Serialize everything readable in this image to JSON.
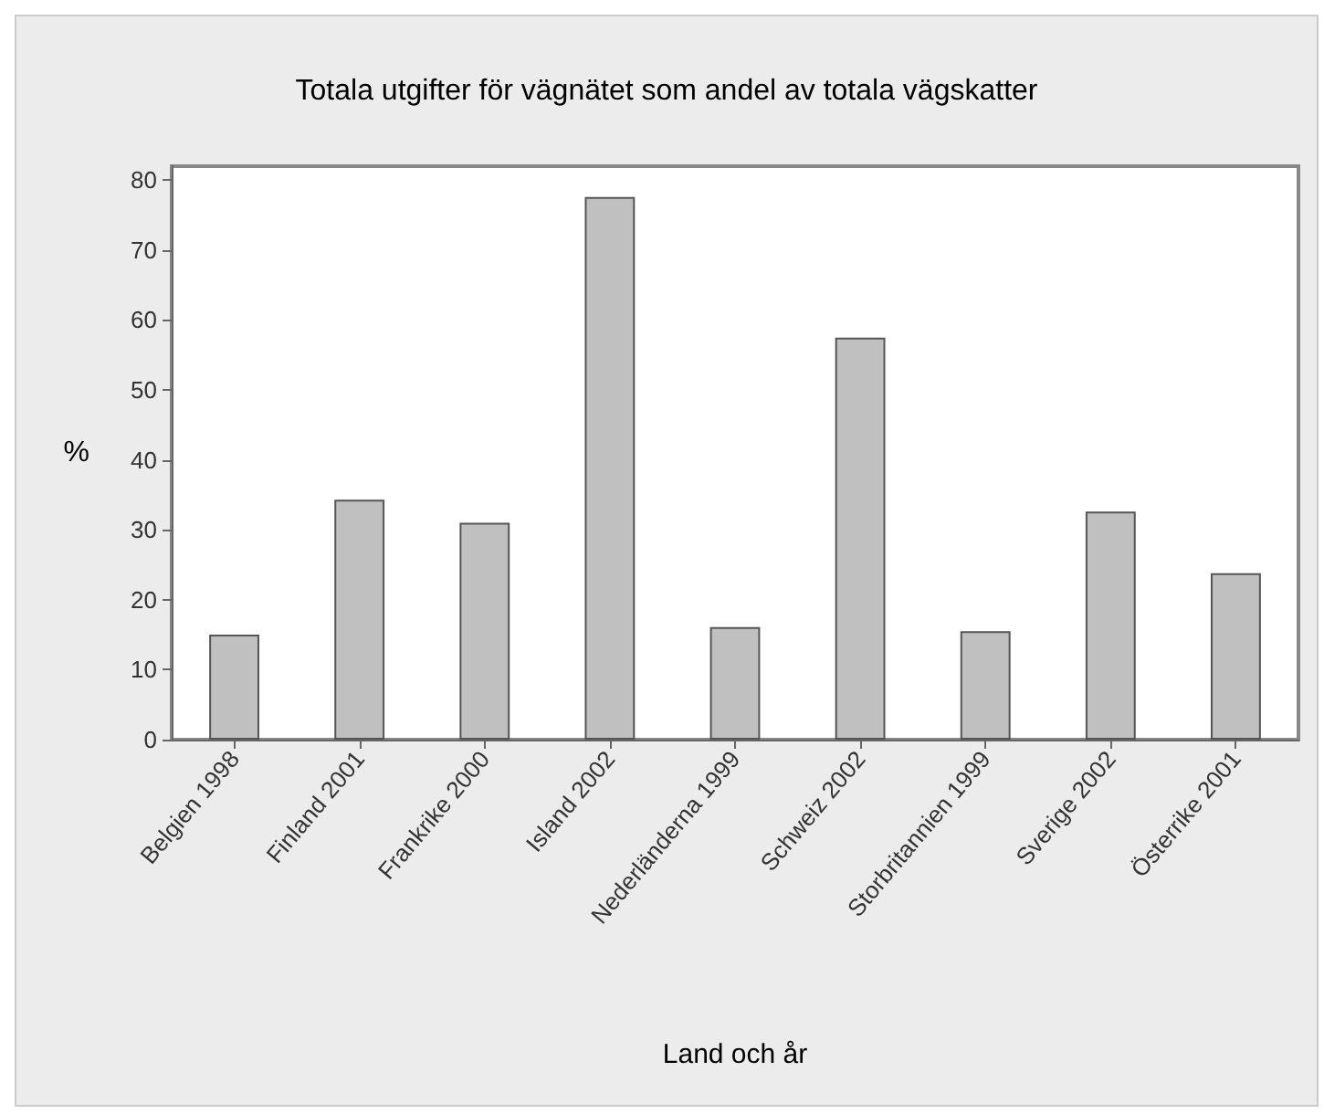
{
  "chart_data": {
    "type": "bar",
    "title": "Totala utgifter för vägnätet som andel av totala vägskatter",
    "xlabel": "Land och år",
    "ylabel": "%",
    "categories": [
      "Belgien 1998",
      "Finland 2001",
      "Frankrike 2000",
      "Island 2002",
      "Nederländerna 1999",
      "Schweiz 2002",
      "Storbritannien 1999",
      "Sverige 2002",
      "Österrike 2001"
    ],
    "values": [
      15,
      34.3,
      31,
      77.6,
      16.1,
      57.5,
      15.5,
      32.6,
      23.8
    ],
    "color": "#c0c0c0",
    "ylim": [
      0,
      82
    ],
    "yticks": [
      0,
      10,
      20,
      30,
      40,
      50,
      60,
      70,
      80
    ],
    "grid": false
  }
}
